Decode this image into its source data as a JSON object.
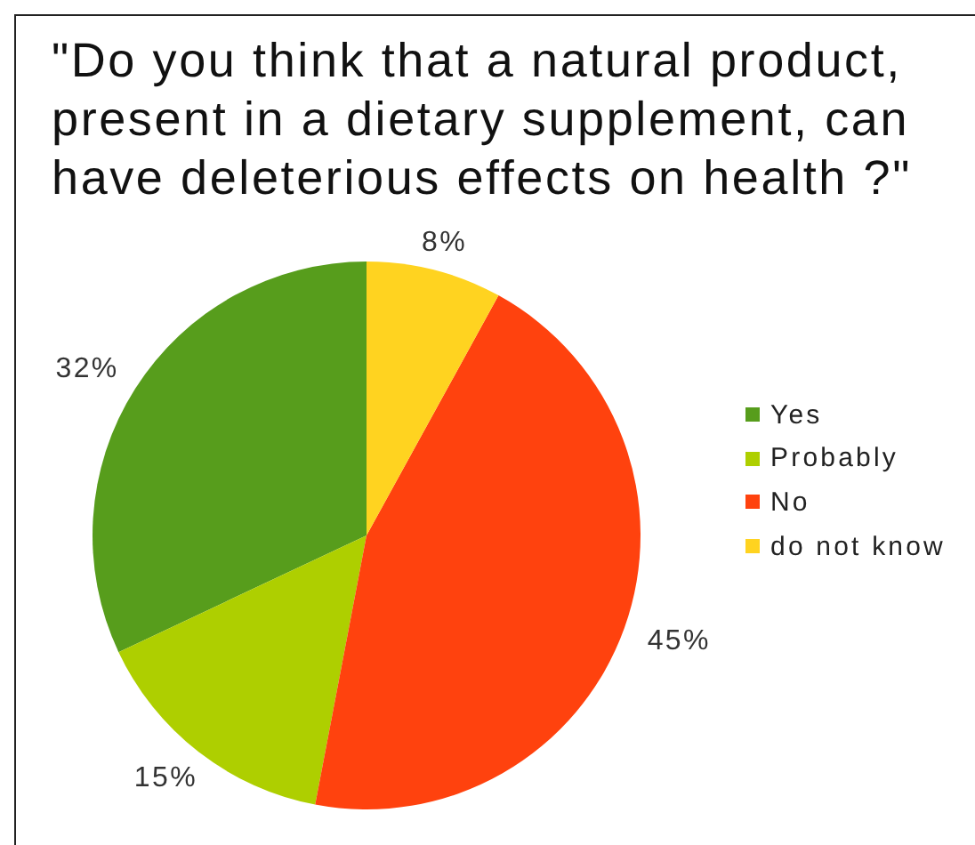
{
  "chart_data": {
    "type": "pie",
    "title": "\"Do you think that a natural product, present in a dietary supplement, can have deleterious effects on health ?\"",
    "categories": [
      "Yes",
      "Probably",
      "No",
      "do not know"
    ],
    "values": [
      32,
      15,
      45,
      8
    ],
    "colors": [
      "#579d1c",
      "#aecf00",
      "#ff420e",
      "#ffd320"
    ],
    "value_labels": [
      "32%",
      "15%",
      "45%",
      "8%"
    ],
    "legend": "right"
  }
}
